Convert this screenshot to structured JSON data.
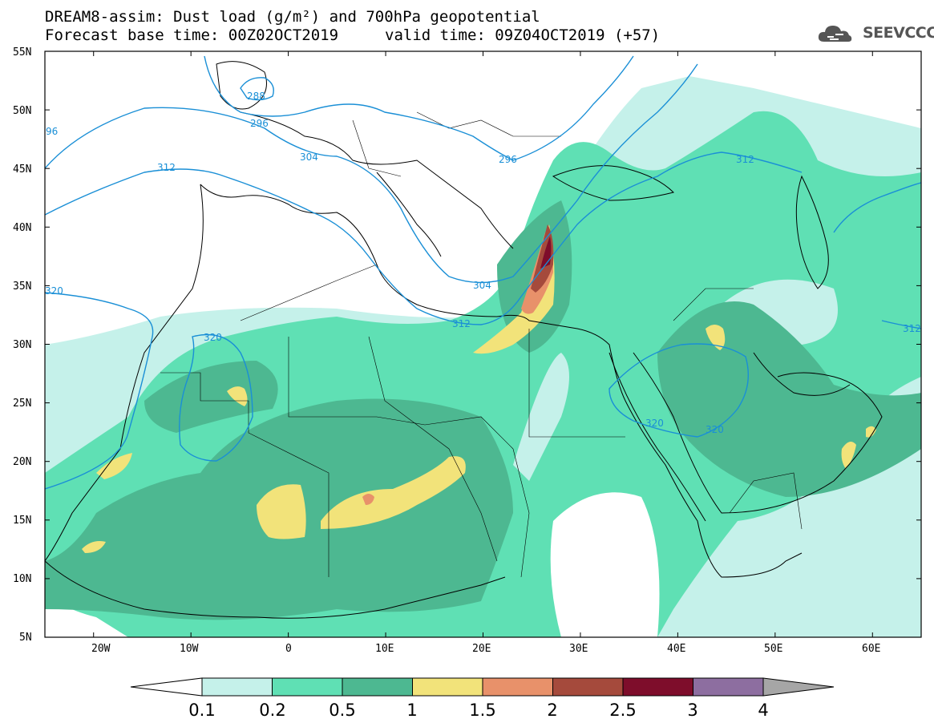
{
  "title": {
    "line1": "DREAM8-assim: Dust load (g/m²) and 700hPa geopotential",
    "line2_left": "Forecast base time: 00Z02OCT2019",
    "line2_right": "valid time: 09Z04OCT2019 (+57)"
  },
  "logo": {
    "text": "SEEVCCC",
    "icon": "cloud-icon"
  },
  "axes": {
    "lat_labels": [
      "55N",
      "50N",
      "45N",
      "40N",
      "35N",
      "30N",
      "25N",
      "20N",
      "15N",
      "10N",
      "5N"
    ],
    "lon_labels": [
      "20W",
      "10W",
      "0",
      "10E",
      "20E",
      "30E",
      "40E",
      "50E",
      "60E"
    ],
    "lon_range": [
      -25,
      65
    ],
    "lat_range": [
      5,
      55
    ]
  },
  "contours": {
    "color": "#1a8fd6",
    "labels": [
      "288",
      "296",
      "304",
      "312",
      "296",
      "304",
      "312",
      "320",
      "320",
      "320",
      "320",
      "312",
      "312",
      "96"
    ]
  },
  "colorbar": {
    "boundaries": [
      "0.1",
      "0.2",
      "0.5",
      "1",
      "1.5",
      "2",
      "2.5",
      "3",
      "4"
    ],
    "colors": [
      "#c5f1ea",
      "#5fe0b4",
      "#4db891",
      "#f2e37a",
      "#e8916a",
      "#a54a3c",
      "#7e0d2b",
      "#8d6ea0",
      "#a6a6a6"
    ]
  }
}
